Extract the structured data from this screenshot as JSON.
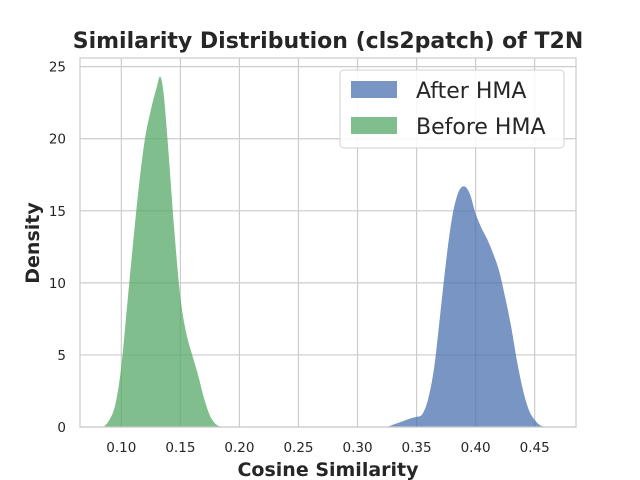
{
  "chart_data": {
    "type": "area",
    "title": "Similarity Distribution (cls2patch) of T2N",
    "xlabel": "Cosine Similarity",
    "ylabel": "Density",
    "xlim": [
      0.065,
      0.485
    ],
    "ylim": [
      0,
      25.6
    ],
    "xticks": [
      0.1,
      0.15,
      0.2,
      0.25,
      0.3,
      0.35,
      0.4,
      0.45
    ],
    "xtick_labels": [
      "0.10",
      "0.15",
      "0.20",
      "0.25",
      "0.30",
      "0.35",
      "0.40",
      "0.45"
    ],
    "yticks": [
      0,
      5,
      10,
      15,
      20,
      25
    ],
    "ytick_labels": [
      "0",
      "5",
      "10",
      "15",
      "20",
      "25"
    ],
    "grid": true,
    "legend_position": "top-right",
    "series": [
      {
        "name": "After HMA",
        "color": "#4c72b0",
        "x": [
          0.325,
          0.335,
          0.345,
          0.35,
          0.355,
          0.36,
          0.365,
          0.37,
          0.375,
          0.38,
          0.385,
          0.39,
          0.395,
          0.4,
          0.405,
          0.41,
          0.415,
          0.42,
          0.425,
          0.43,
          0.435,
          0.44,
          0.445,
          0.45,
          0.455,
          0.46,
          0.465
        ],
        "y": [
          0,
          0.3,
          0.6,
          0.7,
          0.9,
          2.0,
          4.2,
          7.8,
          11.5,
          14.5,
          16.2,
          16.7,
          16.2,
          14.8,
          13.8,
          13.0,
          12.0,
          10.8,
          9.0,
          7.0,
          4.6,
          2.6,
          1.2,
          0.5,
          0.1,
          0.02,
          0
        ]
      },
      {
        "name": "Before HMA",
        "color": "#55a868",
        "x": [
          0.085,
          0.09,
          0.095,
          0.1,
          0.105,
          0.11,
          0.115,
          0.12,
          0.125,
          0.13,
          0.133,
          0.136,
          0.14,
          0.145,
          0.15,
          0.155,
          0.16,
          0.165,
          0.17,
          0.175,
          0.18,
          0.185
        ],
        "y": [
          0,
          0.5,
          1.6,
          4.2,
          8.5,
          12.8,
          16.8,
          20.0,
          22.0,
          23.6,
          24.3,
          23.0,
          19.0,
          13.5,
          9.0,
          6.5,
          5.0,
          3.6,
          2.0,
          0.8,
          0.2,
          0
        ]
      }
    ]
  }
}
